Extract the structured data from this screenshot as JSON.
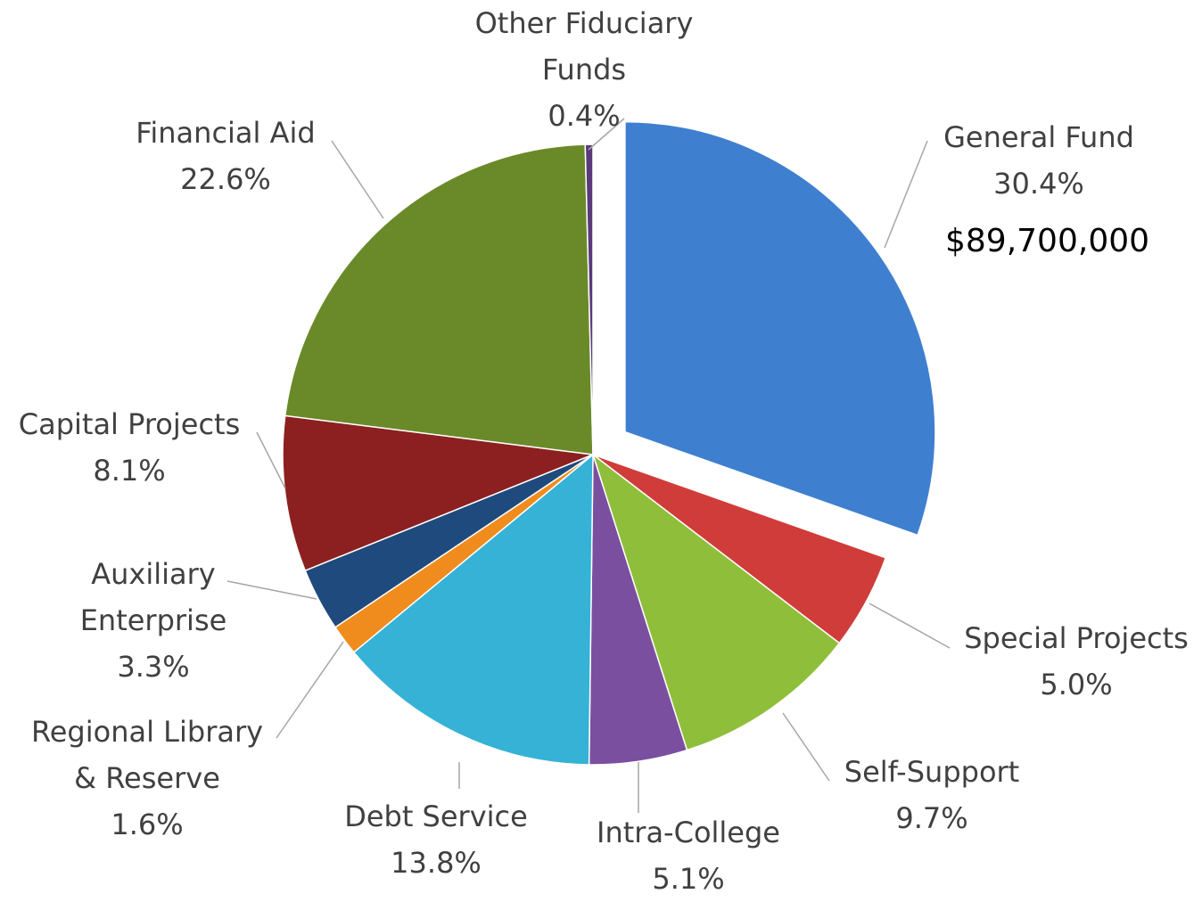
{
  "chart_data": {
    "type": "pie",
    "categories": [
      "General Fund",
      "Special Projects",
      "Self-Support",
      "Intra-College",
      "Debt Service",
      "Regional Library & Reserve",
      "Auxiliary Enterprise",
      "Capital Projects",
      "Financial Aid",
      "Other Fiduciary Funds"
    ],
    "values": [
      30.4,
      5.0,
      9.7,
      5.1,
      13.8,
      1.6,
      3.3,
      8.1,
      22.6,
      0.4
    ],
    "value_labels": [
      "30.4%",
      "5.0%",
      "9.7%",
      "5.1%",
      "13.8%",
      "1.6%",
      "3.3%",
      "8.1%",
      "22.6%",
      "0.4%"
    ],
    "colors": [
      "#3f7fd0",
      "#d03c3a",
      "#8fbf3a",
      "#7a4fa0",
      "#35b2d6",
      "#f08c1e",
      "#1f4a7d",
      "#8c2020",
      "#6a8a2a",
      "#5a3a7a"
    ],
    "annotation": "$89,700,000"
  }
}
